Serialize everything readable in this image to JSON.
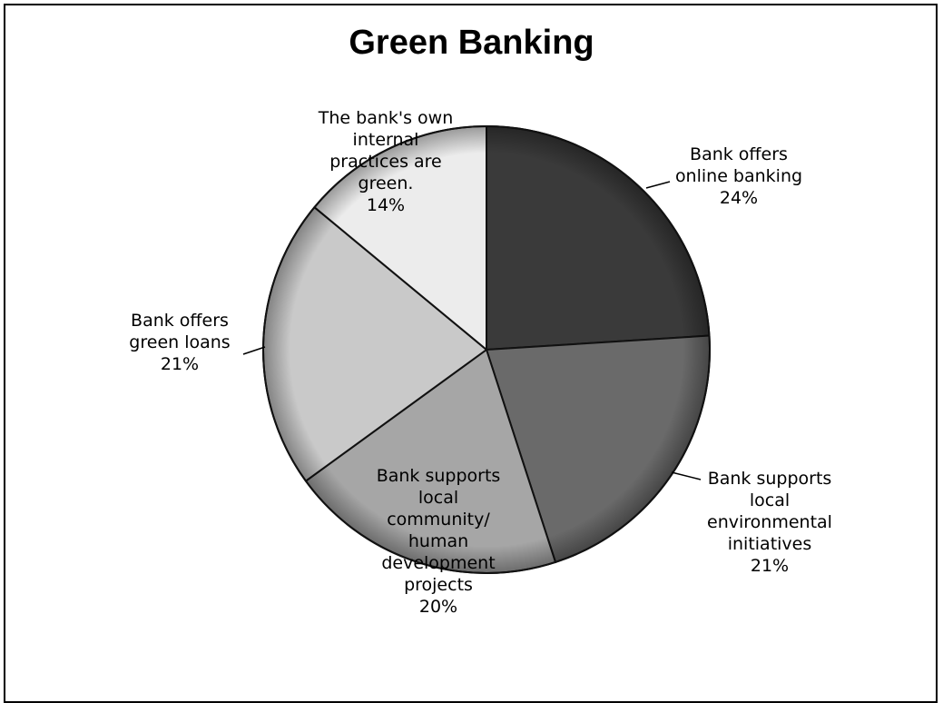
{
  "chart_data": {
    "type": "pie",
    "title": "Green Banking",
    "slices": [
      {
        "label_lines": [
          "Bank offers",
          "online banking",
          "24%"
        ],
        "value": 24,
        "color": "#3a3a3a"
      },
      {
        "label_lines": [
          "Bank supports",
          "local",
          "environmental",
          "initiatives",
          "21%"
        ],
        "value": 21,
        "color": "#6a6a6a"
      },
      {
        "label_lines": [
          "Bank supports",
          "local",
          "community/",
          "human",
          "development",
          "projects",
          "20%"
        ],
        "value": 20,
        "color": "#a6a6a6"
      },
      {
        "label_lines": [
          "Bank offers",
          "green loans",
          "21%"
        ],
        "value": 21,
        "color": "#c9c9c9"
      },
      {
        "label_lines": [
          "The bank's own",
          "internal",
          "practices are",
          "green.",
          "14%"
        ],
        "value": 14,
        "color": "#ececec"
      }
    ]
  }
}
